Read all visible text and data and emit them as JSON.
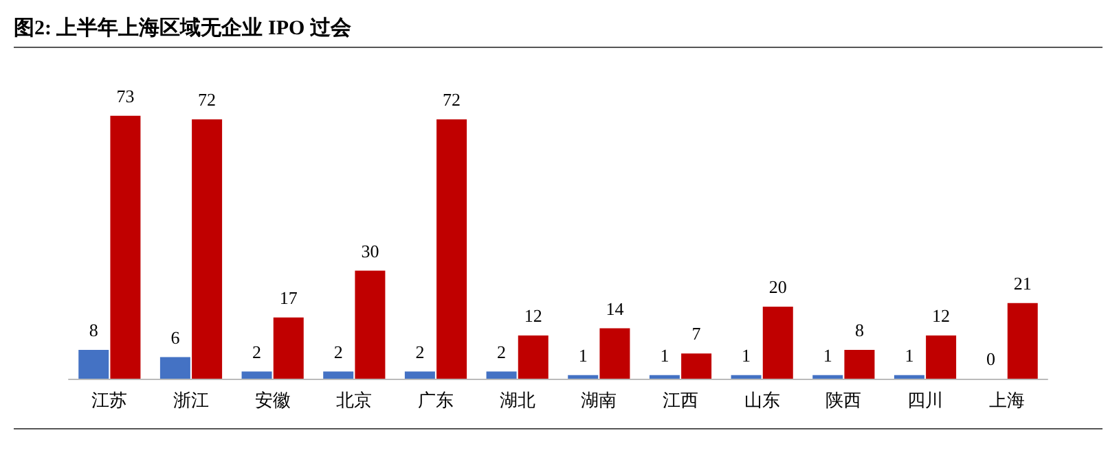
{
  "chart_data": {
    "type": "bar",
    "title": "图2:  上半年上海区域无企业 IPO 过会",
    "categories": [
      "江苏",
      "浙江",
      "安徽",
      "北京",
      "广东",
      "湖北",
      "湖南",
      "江西",
      "山东",
      "陕西",
      "四川",
      "上海"
    ],
    "series": [
      {
        "color": "#4472c4",
        "values": [
          8,
          6,
          2,
          2,
          2,
          2,
          1,
          1,
          1,
          1,
          1,
          0
        ]
      },
      {
        "color": "#c00000",
        "values": [
          73,
          72,
          17,
          30,
          72,
          12,
          14,
          7,
          20,
          8,
          12,
          21
        ]
      }
    ],
    "data_labels": true
  }
}
